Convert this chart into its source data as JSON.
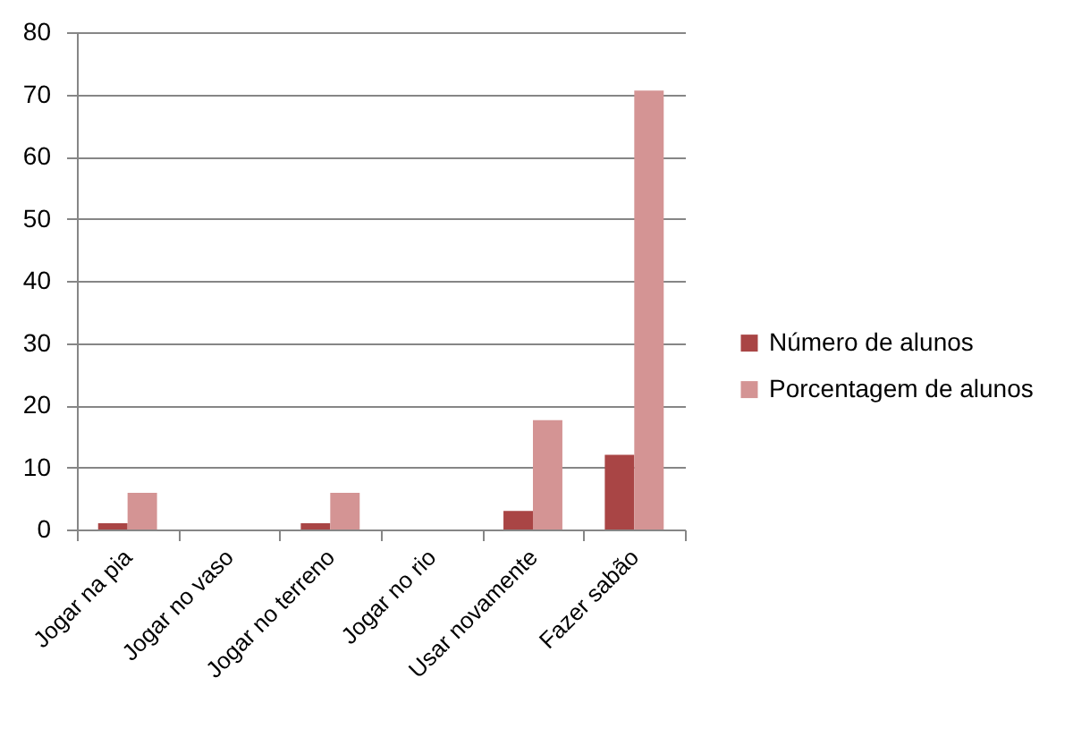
{
  "chart_data": {
    "type": "bar",
    "categories": [
      "Jogar na pia",
      "Jogar no vaso",
      "Jogar no terreno",
      "Jogar no rio",
      "Usar novamente",
      "Fazer sabão"
    ],
    "series": [
      {
        "name": "Número de alunos",
        "color": "#a94545",
        "values": [
          1,
          0,
          1,
          0,
          3,
          12
        ]
      },
      {
        "name": "Porcentagem de alunos",
        "color": "#d49494",
        "values": [
          5.9,
          0,
          5.9,
          0,
          17.6,
          70.6
        ]
      }
    ],
    "ylim": [
      0,
      80
    ],
    "yticks": [
      0,
      10,
      20,
      30,
      40,
      50,
      60,
      70,
      80
    ],
    "grid": "y",
    "legend": "right"
  }
}
